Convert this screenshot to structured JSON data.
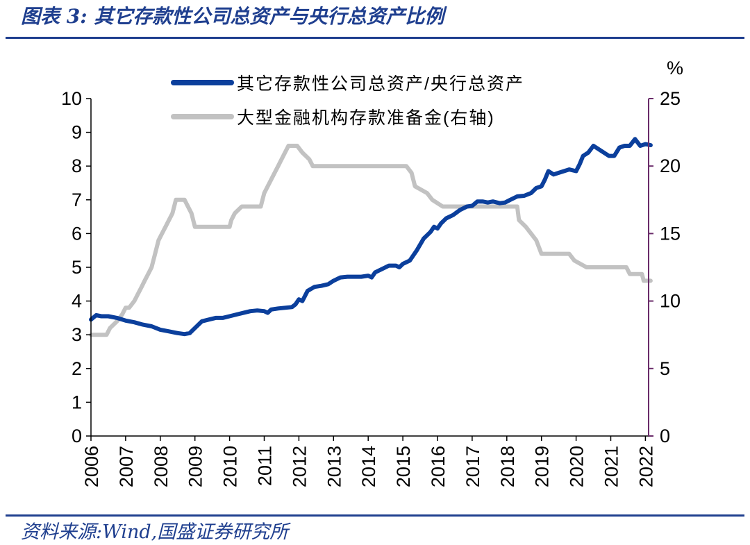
{
  "header": {
    "title": "图表 3:  其它存款性公司总资产与央行总资产比例"
  },
  "footer": {
    "source": "资料来源:Wind,国盛证券研究所"
  },
  "colors": {
    "rule": "#1f3f8f",
    "series_ratio": "#0b3f9c",
    "series_rrr": "#c2c2c2",
    "right_axis": "#6a2c6a"
  },
  "chart_data": {
    "type": "line",
    "title": "",
    "xlabel": "",
    "ylabel": "",
    "ylabel_right": "%",
    "x_ticks": [
      "2006",
      "2007",
      "2008",
      "2009",
      "2010",
      "2011",
      "2012",
      "2013",
      "2014",
      "2015",
      "2016",
      "2017",
      "2018",
      "2019",
      "2020",
      "2021",
      "2022"
    ],
    "x_range": [
      2006,
      2022.2
    ],
    "y_left_ticks": [
      "0",
      "1",
      "2",
      "3",
      "4",
      "5",
      "6",
      "7",
      "8",
      "9",
      "10"
    ],
    "ylim_left": [
      0,
      10
    ],
    "y_right_ticks": [
      "0",
      "5",
      "10",
      "15",
      "20",
      "25"
    ],
    "ylim_right": [
      0,
      25
    ],
    "grid": false,
    "legend_position": "top-center",
    "series": [
      {
        "name": "其它存款性公司总资产/央行总资产",
        "axis": "left",
        "color": "#0b3f9c",
        "points": [
          [
            2006.0,
            3.45
          ],
          [
            2006.15,
            3.58
          ],
          [
            2006.3,
            3.55
          ],
          [
            2006.5,
            3.55
          ],
          [
            2006.75,
            3.5
          ],
          [
            2007.0,
            3.42
          ],
          [
            2007.25,
            3.37
          ],
          [
            2007.5,
            3.3
          ],
          [
            2007.75,
            3.25
          ],
          [
            2008.0,
            3.15
          ],
          [
            2008.25,
            3.1
          ],
          [
            2008.5,
            3.05
          ],
          [
            2008.7,
            3.02
          ],
          [
            2008.85,
            3.05
          ],
          [
            2009.0,
            3.2
          ],
          [
            2009.2,
            3.4
          ],
          [
            2009.4,
            3.45
          ],
          [
            2009.6,
            3.5
          ],
          [
            2009.8,
            3.5
          ],
          [
            2010.0,
            3.55
          ],
          [
            2010.2,
            3.6
          ],
          [
            2010.4,
            3.65
          ],
          [
            2010.6,
            3.7
          ],
          [
            2010.8,
            3.72
          ],
          [
            2011.0,
            3.7
          ],
          [
            2011.1,
            3.65
          ],
          [
            2011.2,
            3.75
          ],
          [
            2011.4,
            3.78
          ],
          [
            2011.6,
            3.8
          ],
          [
            2011.8,
            3.82
          ],
          [
            2011.9,
            3.9
          ],
          [
            2012.0,
            4.05
          ],
          [
            2012.1,
            4.0
          ],
          [
            2012.25,
            4.3
          ],
          [
            2012.45,
            4.42
          ],
          [
            2012.65,
            4.45
          ],
          [
            2012.85,
            4.5
          ],
          [
            2013.0,
            4.6
          ],
          [
            2013.2,
            4.7
          ],
          [
            2013.4,
            4.72
          ],
          [
            2013.6,
            4.72
          ],
          [
            2013.8,
            4.72
          ],
          [
            2014.0,
            4.75
          ],
          [
            2014.1,
            4.7
          ],
          [
            2014.2,
            4.85
          ],
          [
            2014.4,
            4.95
          ],
          [
            2014.6,
            5.05
          ],
          [
            2014.8,
            5.05
          ],
          [
            2014.9,
            5.0
          ],
          [
            2015.0,
            5.1
          ],
          [
            2015.2,
            5.2
          ],
          [
            2015.4,
            5.5
          ],
          [
            2015.6,
            5.85
          ],
          [
            2015.8,
            6.05
          ],
          [
            2015.9,
            6.2
          ],
          [
            2016.0,
            6.15
          ],
          [
            2016.1,
            6.3
          ],
          [
            2016.25,
            6.45
          ],
          [
            2016.45,
            6.55
          ],
          [
            2016.65,
            6.7
          ],
          [
            2016.85,
            6.8
          ],
          [
            2017.0,
            6.82
          ],
          [
            2017.15,
            6.95
          ],
          [
            2017.3,
            6.95
          ],
          [
            2017.45,
            6.92
          ],
          [
            2017.6,
            6.95
          ],
          [
            2017.8,
            6.9
          ],
          [
            2017.95,
            6.92
          ],
          [
            2018.1,
            7.0
          ],
          [
            2018.3,
            7.1
          ],
          [
            2018.5,
            7.12
          ],
          [
            2018.7,
            7.2
          ],
          [
            2018.85,
            7.35
          ],
          [
            2019.0,
            7.4
          ],
          [
            2019.1,
            7.6
          ],
          [
            2019.2,
            7.85
          ],
          [
            2019.35,
            7.75
          ],
          [
            2019.5,
            7.8
          ],
          [
            2019.65,
            7.85
          ],
          [
            2019.8,
            7.9
          ],
          [
            2020.0,
            7.85
          ],
          [
            2020.1,
            8.05
          ],
          [
            2020.2,
            8.3
          ],
          [
            2020.35,
            8.4
          ],
          [
            2020.5,
            8.6
          ],
          [
            2020.65,
            8.5
          ],
          [
            2020.8,
            8.4
          ],
          [
            2020.95,
            8.3
          ],
          [
            2021.1,
            8.3
          ],
          [
            2021.25,
            8.55
          ],
          [
            2021.4,
            8.6
          ],
          [
            2021.55,
            8.6
          ],
          [
            2021.7,
            8.8
          ],
          [
            2021.85,
            8.6
          ],
          [
            2022.0,
            8.65
          ],
          [
            2022.15,
            8.62
          ]
        ]
      },
      {
        "name": "大型金融机构存款准备金(右轴)",
        "axis": "right",
        "color": "#c2c2c2",
        "points": [
          [
            2006.0,
            7.5
          ],
          [
            2006.45,
            7.5
          ],
          [
            2006.55,
            8.0
          ],
          [
            2006.75,
            8.5
          ],
          [
            2006.9,
            9.0
          ],
          [
            2007.0,
            9.5
          ],
          [
            2007.1,
            9.5
          ],
          [
            2007.25,
            10.0
          ],
          [
            2007.35,
            10.5
          ],
          [
            2007.45,
            11.0
          ],
          [
            2007.55,
            11.5
          ],
          [
            2007.65,
            12.0
          ],
          [
            2007.75,
            12.5
          ],
          [
            2007.85,
            13.5
          ],
          [
            2007.95,
            14.5
          ],
          [
            2008.05,
            15.0
          ],
          [
            2008.15,
            15.5
          ],
          [
            2008.25,
            16.0
          ],
          [
            2008.35,
            16.5
          ],
          [
            2008.45,
            17.5
          ],
          [
            2008.7,
            17.5
          ],
          [
            2008.8,
            17.0
          ],
          [
            2008.9,
            16.5
          ],
          [
            2009.0,
            15.5
          ],
          [
            2010.0,
            15.5
          ],
          [
            2010.05,
            16.0
          ],
          [
            2010.15,
            16.5
          ],
          [
            2010.35,
            17.0
          ],
          [
            2010.9,
            17.0
          ],
          [
            2011.0,
            18.0
          ],
          [
            2011.1,
            18.5
          ],
          [
            2011.2,
            19.0
          ],
          [
            2011.3,
            19.5
          ],
          [
            2011.4,
            20.0
          ],
          [
            2011.5,
            20.5
          ],
          [
            2011.6,
            21.0
          ],
          [
            2011.7,
            21.5
          ],
          [
            2011.95,
            21.5
          ],
          [
            2012.1,
            21.0
          ],
          [
            2012.3,
            20.5
          ],
          [
            2012.4,
            20.0
          ],
          [
            2015.1,
            20.0
          ],
          [
            2015.25,
            19.5
          ],
          [
            2015.35,
            18.5
          ],
          [
            2015.7,
            18.0
          ],
          [
            2015.85,
            17.5
          ],
          [
            2016.15,
            17.0
          ],
          [
            2018.3,
            17.0
          ],
          [
            2018.35,
            16.0
          ],
          [
            2018.55,
            15.5
          ],
          [
            2018.85,
            14.5
          ],
          [
            2019.0,
            13.5
          ],
          [
            2019.8,
            13.5
          ],
          [
            2019.95,
            13.0
          ],
          [
            2020.3,
            12.5
          ],
          [
            2021.45,
            12.5
          ],
          [
            2021.55,
            12.0
          ],
          [
            2021.9,
            12.0
          ],
          [
            2021.95,
            11.5
          ],
          [
            2022.15,
            11.5
          ]
        ]
      }
    ]
  }
}
